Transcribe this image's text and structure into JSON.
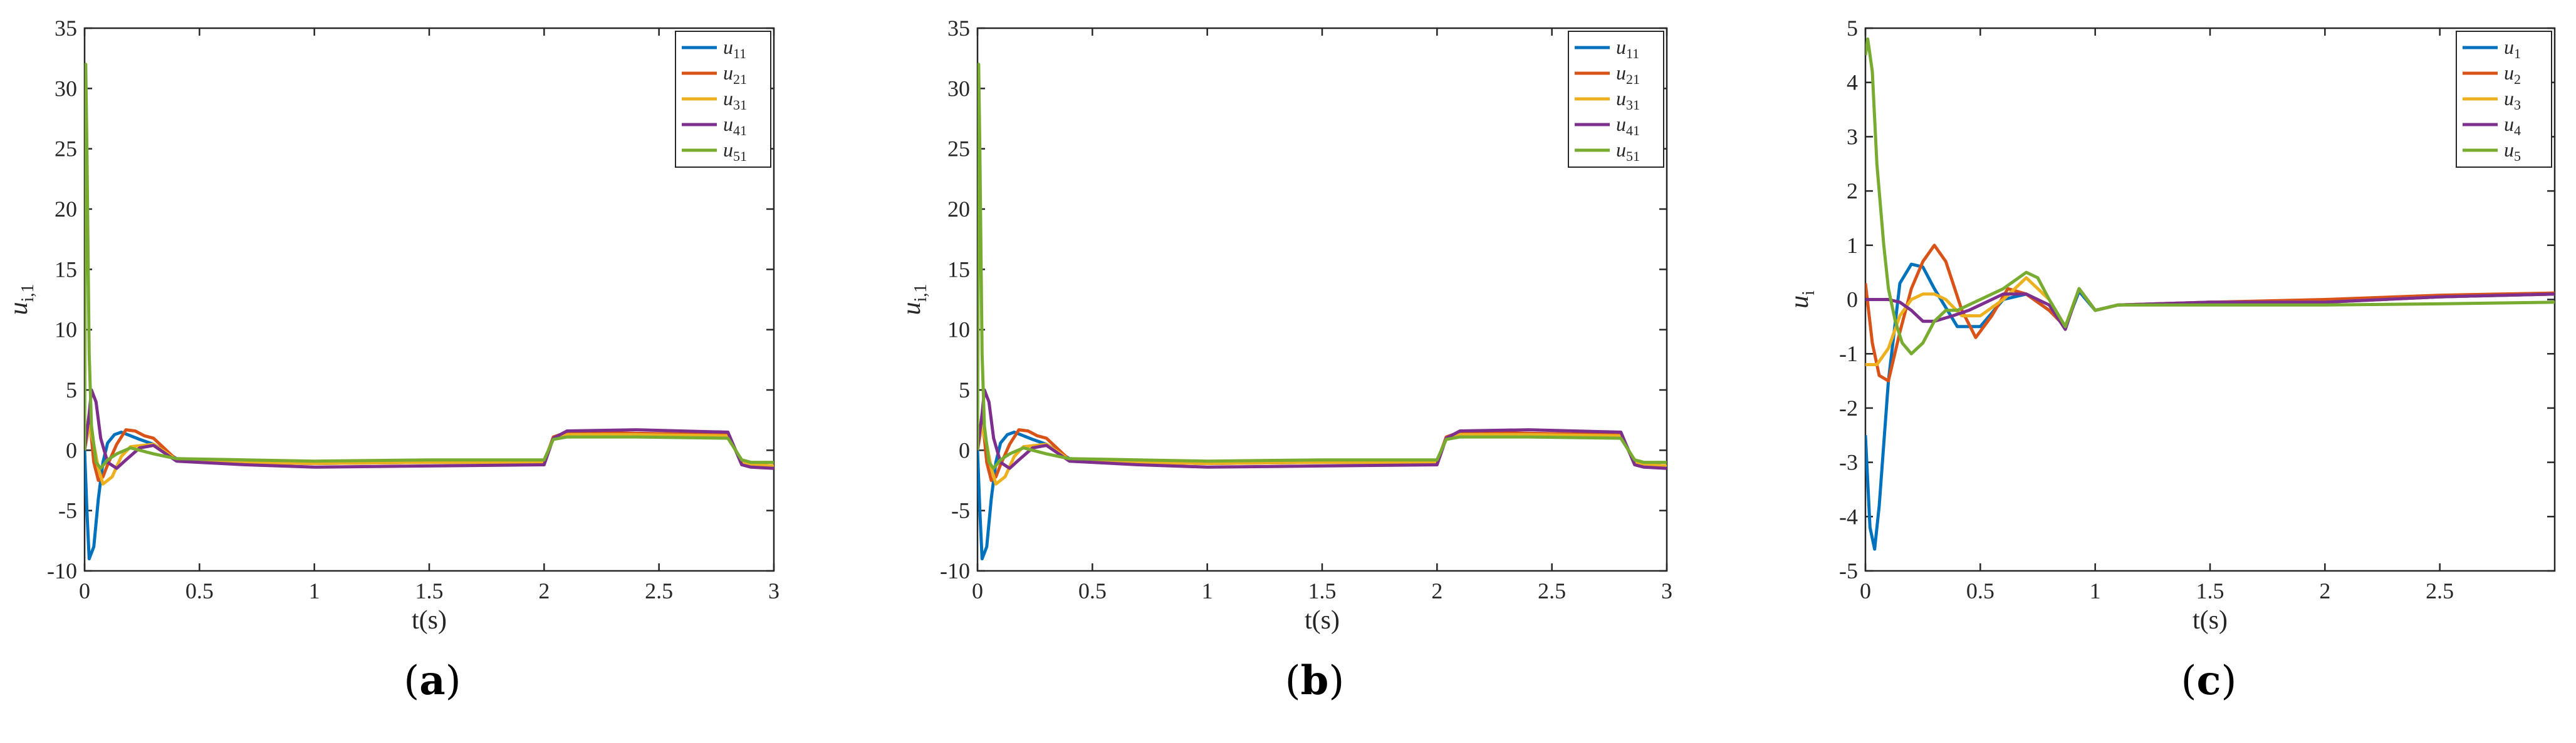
{
  "figure": {
    "panels": [
      {
        "label_letter": "a"
      },
      {
        "label_letter": "b"
      },
      {
        "label_letter": "c"
      }
    ]
  },
  "chart_data": [
    {
      "type": "line",
      "panel": "a",
      "ylabel": "u_{i,1}",
      "ylabel_base": "u",
      "ylabel_sub": "i,1",
      "xlabel": "t(s)",
      "xlim": [
        0,
        3
      ],
      "ylim": [
        -10,
        35
      ],
      "xticks": [
        0,
        0.5,
        1,
        1.5,
        2,
        2.5,
        3
      ],
      "xtick_labels": [
        "0",
        "0.5",
        "1",
        "1.5",
        "2",
        "2.5",
        "3"
      ],
      "yticks": [
        -10,
        -5,
        0,
        5,
        10,
        15,
        20,
        25,
        30,
        35
      ],
      "ytick_labels": [
        "-10",
        "-5",
        "0",
        "5",
        "10",
        "15",
        "20",
        "25",
        "30",
        "35"
      ],
      "grid": false,
      "legend_position": "top-right",
      "series": [
        {
          "name": "u_{11}",
          "base": "u",
          "sub": "11",
          "color": "#0072BD",
          "x": [
            0,
            0.01,
            0.02,
            0.04,
            0.06,
            0.08,
            0.1,
            0.13,
            0.16,
            0.2,
            0.24,
            0.3,
            0.4,
            0.7,
            1.0,
            1.5,
            2.0,
            2.04,
            2.1,
            2.4,
            2.8,
            2.86,
            2.9,
            3.0
          ],
          "y": [
            0,
            -5,
            -9,
            -8,
            -4,
            -1,
            0.6,
            1.3,
            1.5,
            1.2,
            0.9,
            0.5,
            -0.7,
            -1.0,
            -1.1,
            -1.0,
            -1.0,
            1.0,
            1.4,
            1.3,
            1.2,
            -1.0,
            -1.2,
            -1.3
          ]
        },
        {
          "name": "u_{21}",
          "base": "u",
          "sub": "21",
          "color": "#D95319",
          "x": [
            0,
            0.02,
            0.04,
            0.06,
            0.08,
            0.1,
            0.14,
            0.18,
            0.22,
            0.26,
            0.3,
            0.4,
            0.7,
            1.0,
            1.5,
            2.0,
            2.04,
            2.1,
            2.4,
            2.8,
            2.86,
            2.9,
            3.0
          ],
          "y": [
            0,
            3,
            -1,
            -2.5,
            -2.2,
            -1.2,
            0.5,
            1.7,
            1.6,
            1.2,
            1.0,
            -0.8,
            -1.0,
            -1.1,
            -1.0,
            -1.0,
            1.1,
            1.5,
            1.4,
            1.3,
            -1.0,
            -1.2,
            -1.3
          ]
        },
        {
          "name": "u_{31}",
          "base": "u",
          "sub": "31",
          "color": "#EDB120",
          "x": [
            0,
            0.02,
            0.04,
            0.06,
            0.08,
            0.12,
            0.16,
            0.2,
            0.3,
            0.4,
            0.7,
            1.0,
            1.5,
            2.0,
            2.04,
            2.1,
            2.4,
            2.8,
            2.86,
            2.9,
            3.0
          ],
          "y": [
            0,
            2,
            0.5,
            -1.5,
            -2.8,
            -2.2,
            -0.5,
            0.3,
            0.5,
            -0.8,
            -1.0,
            -1.1,
            -1.0,
            -1.0,
            1.0,
            1.3,
            1.3,
            1.2,
            -1.0,
            -1.2,
            -1.3
          ]
        },
        {
          "name": "u_{41}",
          "base": "u",
          "sub": "41",
          "color": "#7E2F8E",
          "x": [
            0,
            0.02,
            0.03,
            0.05,
            0.07,
            0.1,
            0.14,
            0.18,
            0.24,
            0.3,
            0.4,
            0.7,
            1.0,
            1.5,
            2.0,
            2.04,
            2.1,
            2.4,
            2.8,
            2.86,
            2.9,
            3.0
          ],
          "y": [
            0,
            3,
            5,
            4,
            1,
            -1,
            -1.5,
            -0.8,
            0.2,
            0.4,
            -0.9,
            -1.2,
            -1.4,
            -1.3,
            -1.2,
            1.0,
            1.6,
            1.7,
            1.5,
            -1.2,
            -1.4,
            -1.5
          ]
        },
        {
          "name": "u_{51}",
          "base": "u",
          "sub": "51",
          "color": "#77AC30",
          "x": [
            0,
            0.005,
            0.01,
            0.02,
            0.03,
            0.05,
            0.07,
            0.1,
            0.14,
            0.2,
            0.3,
            0.4,
            0.7,
            1.0,
            1.5,
            2.0,
            2.04,
            2.1,
            2.4,
            2.8,
            2.86,
            2.9,
            3.0
          ],
          "y": [
            0,
            32,
            25,
            8,
            2,
            -1,
            -1.5,
            -0.8,
            -0.3,
            0.2,
            -0.3,
            -0.7,
            -0.8,
            -0.9,
            -0.8,
            -0.8,
            0.9,
            1.1,
            1.1,
            1.0,
            -0.8,
            -1.0,
            -1.0
          ]
        }
      ]
    },
    {
      "type": "line",
      "panel": "b",
      "ylabel": "u_{i,1}",
      "ylabel_base": "u",
      "ylabel_sub": "i,1",
      "xlabel": "t(s)",
      "xlim": [
        0,
        3
      ],
      "ylim": [
        -10,
        35
      ],
      "xticks": [
        0,
        0.5,
        1,
        1.5,
        2,
        2.5,
        3
      ],
      "xtick_labels": [
        "0",
        "0.5",
        "1",
        "1.5",
        "2",
        "2.5",
        "3"
      ],
      "yticks": [
        -10,
        -5,
        0,
        5,
        10,
        15,
        20,
        25,
        30,
        35
      ],
      "ytick_labels": [
        "-10",
        "-5",
        "0",
        "5",
        "10",
        "15",
        "20",
        "25",
        "30",
        "35"
      ],
      "grid": false,
      "legend_position": "top-right",
      "series": [
        {
          "name": "u_{11}",
          "base": "u",
          "sub": "11",
          "color": "#0072BD",
          "x": [
            0,
            0.01,
            0.02,
            0.04,
            0.06,
            0.08,
            0.1,
            0.13,
            0.16,
            0.2,
            0.24,
            0.3,
            0.4,
            0.7,
            1.0,
            1.5,
            2.0,
            2.04,
            2.1,
            2.4,
            2.8,
            2.86,
            2.9,
            3.0
          ],
          "y": [
            0,
            -5,
            -9,
            -8,
            -4,
            -1,
            0.6,
            1.3,
            1.5,
            1.2,
            0.9,
            0.5,
            -0.7,
            -1.0,
            -1.1,
            -1.0,
            -1.0,
            1.0,
            1.4,
            1.3,
            1.2,
            -1.0,
            -1.2,
            -1.3
          ]
        },
        {
          "name": "u_{21}",
          "base": "u",
          "sub": "21",
          "color": "#D95319",
          "x": [
            0,
            0.02,
            0.04,
            0.06,
            0.08,
            0.1,
            0.14,
            0.18,
            0.22,
            0.26,
            0.3,
            0.4,
            0.7,
            1.0,
            1.5,
            2.0,
            2.04,
            2.1,
            2.4,
            2.8,
            2.86,
            2.9,
            3.0
          ],
          "y": [
            0,
            3,
            -1,
            -2.5,
            -2.2,
            -1.2,
            0.5,
            1.7,
            1.6,
            1.2,
            1.0,
            -0.8,
            -1.0,
            -1.1,
            -1.0,
            -1.0,
            1.1,
            1.5,
            1.4,
            1.3,
            -1.0,
            -1.2,
            -1.3
          ]
        },
        {
          "name": "u_{31}",
          "base": "u",
          "sub": "31",
          "color": "#EDB120",
          "x": [
            0,
            0.02,
            0.04,
            0.06,
            0.08,
            0.12,
            0.16,
            0.2,
            0.3,
            0.4,
            0.7,
            1.0,
            1.5,
            2.0,
            2.04,
            2.1,
            2.4,
            2.8,
            2.86,
            2.9,
            3.0
          ],
          "y": [
            0,
            2,
            0.5,
            -1.5,
            -2.8,
            -2.2,
            -0.5,
            0.3,
            0.5,
            -0.8,
            -1.0,
            -1.1,
            -1.0,
            -1.0,
            1.0,
            1.3,
            1.3,
            1.2,
            -1.0,
            -1.2,
            -1.3
          ]
        },
        {
          "name": "u_{41}",
          "base": "u",
          "sub": "41",
          "color": "#7E2F8E",
          "x": [
            0,
            0.02,
            0.03,
            0.05,
            0.07,
            0.1,
            0.14,
            0.18,
            0.24,
            0.3,
            0.4,
            0.7,
            1.0,
            1.5,
            2.0,
            2.04,
            2.1,
            2.4,
            2.8,
            2.86,
            2.9,
            3.0
          ],
          "y": [
            0,
            3,
            5,
            4,
            1,
            -1,
            -1.5,
            -0.8,
            0.2,
            0.4,
            -0.9,
            -1.2,
            -1.4,
            -1.3,
            -1.2,
            1.0,
            1.6,
            1.7,
            1.5,
            -1.2,
            -1.4,
            -1.5
          ]
        },
        {
          "name": "u_{51}",
          "base": "u",
          "sub": "51",
          "color": "#77AC30",
          "x": [
            0,
            0.005,
            0.01,
            0.02,
            0.03,
            0.05,
            0.07,
            0.1,
            0.14,
            0.2,
            0.3,
            0.4,
            0.7,
            1.0,
            1.5,
            2.0,
            2.04,
            2.1,
            2.4,
            2.8,
            2.86,
            2.9,
            3.0
          ],
          "y": [
            0,
            32,
            25,
            8,
            2,
            -1,
            -1.5,
            -0.8,
            -0.3,
            0.2,
            -0.3,
            -0.7,
            -0.8,
            -0.9,
            -0.8,
            -0.8,
            0.9,
            1.1,
            1.1,
            1.0,
            -0.8,
            -1.0,
            -1.0
          ]
        }
      ]
    },
    {
      "type": "line",
      "panel": "c",
      "ylabel": "u_i",
      "ylabel_base": "u",
      "ylabel_sub": "i",
      "xlabel": "t(s)",
      "xlim": [
        0,
        3
      ],
      "ylim": [
        -5,
        5
      ],
      "xticks": [
        0,
        0.5,
        1,
        1.5,
        2,
        2.5
      ],
      "xtick_labels": [
        "0",
        "0.5",
        "1",
        "1.5",
        "2",
        "2.5"
      ],
      "yticks": [
        -5,
        -4,
        -3,
        -2,
        -1,
        0,
        1,
        2,
        3,
        4,
        5
      ],
      "ytick_labels": [
        "-5",
        "-4",
        "-3",
        "-2",
        "-1",
        "0",
        "1",
        "2",
        "3",
        "4",
        "5"
      ],
      "grid": false,
      "legend_position": "top-right",
      "series": [
        {
          "name": "u_1",
          "base": "u",
          "sub": "1",
          "color": "#0072BD",
          "x": [
            0,
            0.02,
            0.04,
            0.06,
            0.1,
            0.15,
            0.2,
            0.25,
            0.3,
            0.4,
            0.5,
            0.6,
            0.7,
            0.8,
            0.87,
            0.93,
            1.0,
            1.1,
            1.5,
            2.0,
            2.5,
            3.0
          ],
          "y": [
            -2.5,
            -4.2,
            -4.6,
            -3.8,
            -1.5,
            0.3,
            0.65,
            0.6,
            0.2,
            -0.5,
            -0.5,
            0.0,
            0.1,
            -0.2,
            -0.5,
            0.15,
            -0.2,
            -0.1,
            -0.05,
            -0.05,
            0.05,
            0.1
          ]
        },
        {
          "name": "u_2",
          "base": "u",
          "sub": "2",
          "color": "#D95319",
          "x": [
            0,
            0.03,
            0.06,
            0.1,
            0.15,
            0.2,
            0.25,
            0.3,
            0.35,
            0.42,
            0.48,
            0.55,
            0.62,
            0.7,
            0.8,
            0.87,
            0.93,
            1.0,
            1.1,
            1.5,
            2.0,
            2.5,
            3.0
          ],
          "y": [
            0.3,
            -0.8,
            -1.4,
            -1.5,
            -0.6,
            0.2,
            0.7,
            1.0,
            0.7,
            -0.2,
            -0.7,
            -0.3,
            0.2,
            0.1,
            -0.2,
            -0.5,
            0.2,
            -0.2,
            -0.1,
            -0.05,
            0.0,
            0.08,
            0.12
          ]
        },
        {
          "name": "u_3",
          "base": "u",
          "sub": "3",
          "color": "#EDB120",
          "x": [
            0,
            0.05,
            0.1,
            0.15,
            0.2,
            0.25,
            0.3,
            0.35,
            0.42,
            0.5,
            0.6,
            0.7,
            0.8,
            0.87,
            0.93,
            1.0,
            1.1,
            1.5,
            2.0,
            2.5,
            3.0
          ],
          "y": [
            -1.2,
            -1.2,
            -0.9,
            -0.3,
            0.0,
            0.1,
            0.1,
            0.0,
            -0.3,
            -0.3,
            0.0,
            0.4,
            0.0,
            -0.5,
            0.2,
            -0.2,
            -0.1,
            -0.05,
            -0.05,
            0.05,
            0.1
          ]
        },
        {
          "name": "u_4",
          "base": "u",
          "sub": "4",
          "color": "#7E2F8E",
          "x": [
            0,
            0.05,
            0.1,
            0.15,
            0.2,
            0.25,
            0.3,
            0.38,
            0.45,
            0.5,
            0.6,
            0.7,
            0.8,
            0.87,
            0.93,
            1.0,
            1.1,
            1.5,
            2.0,
            2.5,
            3.0
          ],
          "y": [
            0.0,
            0.0,
            0.0,
            -0.05,
            -0.2,
            -0.4,
            -0.4,
            -0.3,
            -0.2,
            -0.1,
            0.1,
            0.1,
            -0.1,
            -0.55,
            0.2,
            -0.2,
            -0.1,
            -0.05,
            -0.05,
            0.05,
            0.1
          ]
        },
        {
          "name": "u_5",
          "base": "u",
          "sub": "5",
          "color": "#77AC30",
          "x": [
            0,
            0.01,
            0.03,
            0.05,
            0.08,
            0.1,
            0.13,
            0.16,
            0.2,
            0.25,
            0.3,
            0.35,
            0.4,
            0.5,
            0.6,
            0.7,
            0.75,
            0.8,
            0.87,
            0.93,
            1.0,
            1.1,
            1.5,
            2.0,
            2.5,
            3.0
          ],
          "y": [
            4.5,
            4.8,
            4.2,
            2.5,
            1.0,
            0.2,
            -0.4,
            -0.8,
            -1.0,
            -0.8,
            -0.4,
            -0.2,
            -0.2,
            0.0,
            0.2,
            0.5,
            0.4,
            0.0,
            -0.5,
            0.2,
            -0.2,
            -0.1,
            -0.1,
            -0.1,
            -0.08,
            -0.05
          ]
        }
      ]
    }
  ]
}
